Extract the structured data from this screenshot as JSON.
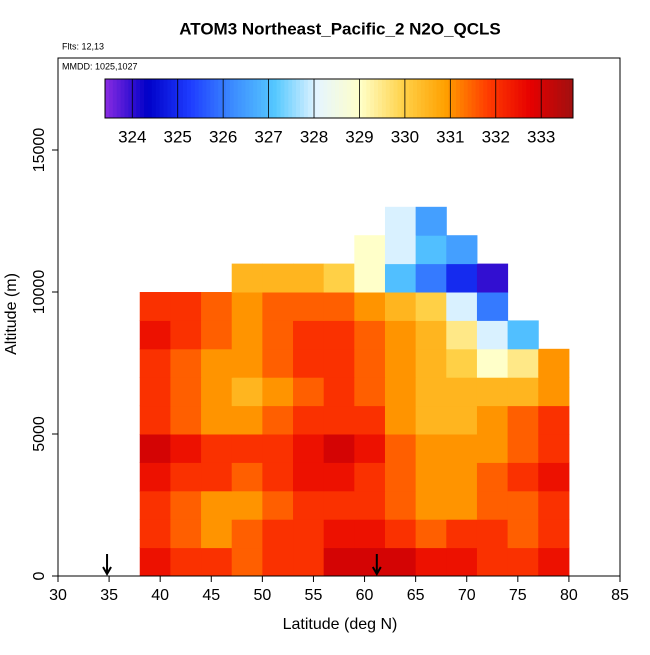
{
  "chart_data": {
    "type": "heatmap",
    "title": "ATOM3 Northeast_Pacific_2 N2O_QCLS",
    "annotations": [
      "Flts: 12,13",
      "MMDD: 1025,1027"
    ],
    "x_label": "Latitude (deg N)",
    "y_label": "Altitude (m)",
    "xlim": [
      30,
      85
    ],
    "ylim": [
      0,
      18240
    ],
    "xticks": [
      30,
      35,
      40,
      45,
      50,
      55,
      60,
      65,
      70,
      75,
      80,
      85
    ],
    "yticks": [
      0,
      5000,
      10000,
      15000
    ],
    "zlim": [
      323.4,
      333.7
    ],
    "colorbar_ticks": [
      324,
      325,
      326,
      327,
      328,
      329,
      330,
      331,
      332,
      333
    ],
    "colors": [
      "#8a2be2",
      "#0000c8",
      "#1e3cff",
      "#3c8cff",
      "#55c8ff",
      "#e6f5ff",
      "#ffffc8",
      "#ffd24a",
      "#ffa000",
      "#ff3c00",
      "#e60000",
      "#a01010"
    ],
    "arrows": [
      34.8,
      61.2
    ],
    "x_edges": [
      38,
      41,
      44,
      47,
      50,
      53,
      56,
      59,
      62,
      65,
      68,
      71,
      74,
      77,
      80
    ],
    "y_edges": [
      0,
      1000,
      2000,
      3000,
      4000,
      5000,
      6000,
      7000,
      8000,
      9000,
      10000,
      11000,
      12000,
      13000
    ],
    "z": [
      [
        332.5,
        332,
        332,
        331.5,
        332,
        332,
        333,
        333,
        333,
        332.5,
        332.5,
        332,
        332,
        332.5
      ],
      [
        332,
        331.5,
        331,
        331.5,
        332,
        332,
        332.5,
        332.5,
        332,
        331.5,
        332,
        332,
        331.5,
        332
      ],
      [
        332,
        331.5,
        331,
        331,
        331.5,
        332,
        332,
        332,
        331.5,
        331,
        331,
        331.5,
        331.5,
        332
      ],
      [
        332.5,
        332,
        332,
        331.5,
        332,
        332.5,
        332.5,
        332,
        331.5,
        331,
        331,
        331.5,
        332,
        332.5
      ],
      [
        333,
        332.5,
        332,
        332,
        332,
        332.5,
        333,
        332.5,
        331.5,
        331,
        331,
        331,
        331.5,
        332
      ],
      [
        332,
        331.5,
        331,
        331,
        331.5,
        332,
        332,
        332,
        331,
        330.5,
        330.5,
        331,
        331.5,
        332
      ],
      [
        332,
        331.5,
        331,
        330.5,
        331,
        331.5,
        332,
        331.5,
        331,
        330.5,
        330.5,
        330.5,
        330.5,
        331
      ],
      [
        332,
        331.5,
        331,
        331,
        331.5,
        332,
        332,
        331.5,
        331,
        330.5,
        330,
        329,
        329.5,
        331
      ],
      [
        332.5,
        332,
        331.5,
        331,
        331.5,
        332,
        332,
        331.5,
        331,
        330.5,
        329.5,
        328,
        327,
        null
      ],
      [
        332,
        332,
        331.5,
        331,
        331.5,
        331.5,
        331.5,
        331,
        330.5,
        330,
        328,
        326,
        null,
        null
      ],
      [
        null,
        null,
        null,
        330.5,
        330.5,
        330.5,
        330,
        329,
        327,
        326,
        325,
        324,
        null,
        null
      ],
      [
        null,
        null,
        null,
        null,
        null,
        null,
        null,
        329,
        328,
        327,
        326.5,
        null,
        null,
        null
      ],
      [
        null,
        null,
        null,
        null,
        null,
        null,
        null,
        null,
        328,
        326.5,
        null,
        null,
        null,
        null
      ]
    ]
  }
}
